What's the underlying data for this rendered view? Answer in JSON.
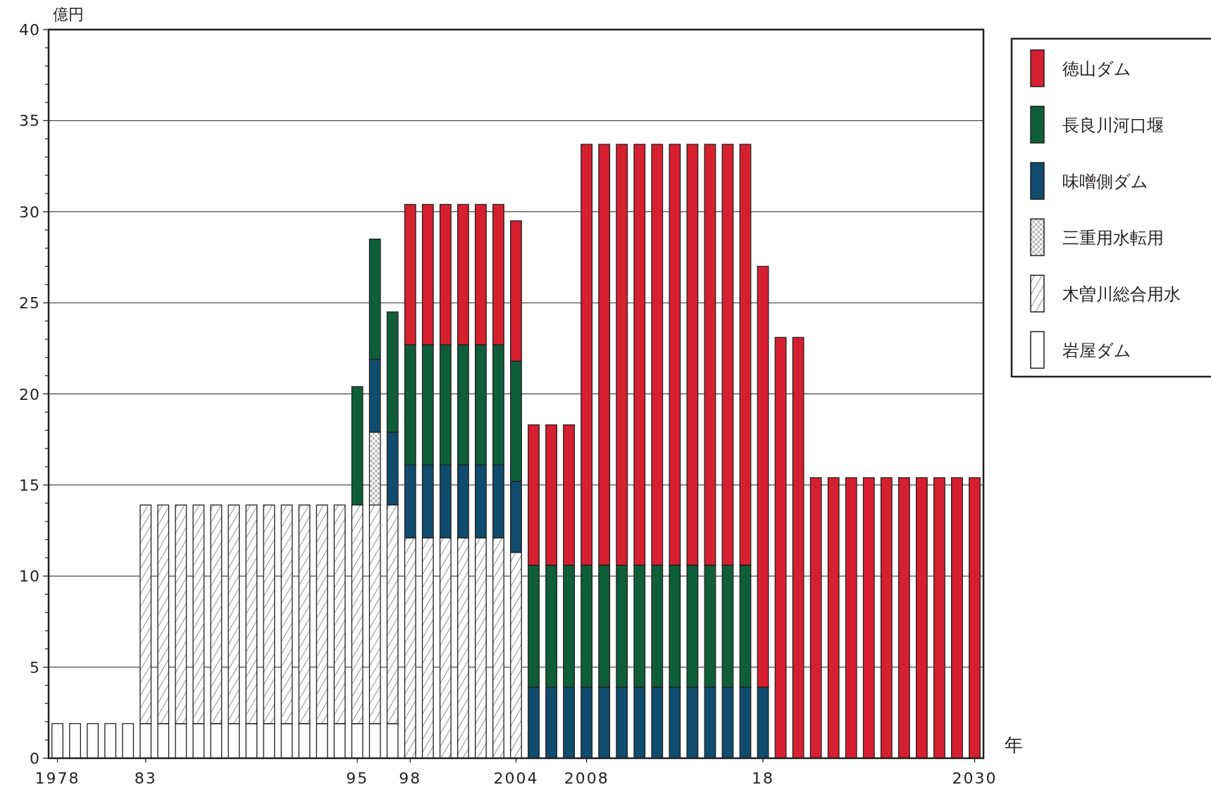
{
  "chart_data": {
    "type": "bar",
    "stacked": true,
    "ylabel": "億円",
    "xlabel": "年",
    "categories": [
      "1978",
      null,
      null,
      null,
      null,
      "83",
      null,
      null,
      null,
      null,
      null,
      null,
      null,
      null,
      null,
      null,
      null,
      "95",
      null,
      null,
      "98",
      null,
      null,
      null,
      null,
      null,
      "2004",
      null,
      null,
      null,
      "2008",
      null,
      null,
      null,
      null,
      null,
      null,
      null,
      null,
      null,
      "18",
      null,
      null,
      null,
      null,
      null,
      null,
      null,
      null,
      null,
      null,
      null,
      "2030"
    ],
    "ylim": [
      0,
      40
    ],
    "yticks": [
      0,
      {
        "value": 1,
        "label": null
      },
      {
        "value": 2,
        "label": null
      },
      {
        "value": 3,
        "label": null
      },
      {
        "value": 4,
        "label": null
      },
      5,
      {
        "value": 6,
        "label": null
      },
      {
        "value": 7,
        "label": null
      },
      {
        "value": 8,
        "label": null
      },
      {
        "value": 9,
        "label": null
      },
      10,
      {
        "value": 11,
        "label": null
      },
      {
        "value": 12,
        "label": null
      },
      {
        "value": 13,
        "label": null
      },
      {
        "value": 14,
        "label": null
      },
      15,
      {
        "value": 16,
        "label": null
      },
      {
        "value": 17,
        "label": null
      },
      {
        "value": 18,
        "label": null
      },
      {
        "value": 19,
        "label": null
      },
      20,
      {
        "value": 21,
        "label": null
      },
      {
        "value": 22,
        "label": null
      },
      {
        "value": 23,
        "label": null
      },
      {
        "value": 24,
        "label": null
      },
      25,
      {
        "value": 26,
        "label": null
      },
      {
        "value": 27,
        "label": null
      },
      {
        "value": 28,
        "label": null
      },
      {
        "value": 29,
        "label": null
      },
      30,
      {
        "value": 31,
        "label": null
      },
      {
        "value": 32,
        "label": null
      },
      {
        "value": 33,
        "label": null
      },
      {
        "value": 34,
        "label": null
      },
      35,
      {
        "value": 36,
        "label": null
      },
      {
        "value": 37,
        "label": null
      },
      {
        "value": 38,
        "label": null
      },
      {
        "value": 39,
        "label": null
      },
      40
    ],
    "grid": "y",
    "legend": "top right",
    "series": [
      {
        "name": "岩屋ダム",
        "color": "#ffffff",
        "values": [
          1.9,
          1.9,
          1.9,
          1.9,
          1.9,
          1.9,
          1.9,
          1.9,
          1.9,
          1.9,
          1.9,
          1.9,
          1.9,
          1.9,
          1.9,
          1.9,
          1.9,
          1.9,
          1.9,
          1.9,
          null,
          null,
          null,
          null,
          null,
          null,
          null,
          null,
          null,
          null,
          null,
          null,
          null,
          null,
          null,
          null,
          null,
          null,
          null,
          null,
          null,
          null,
          null,
          null,
          null,
          null,
          null,
          null,
          null,
          null,
          null,
          null,
          null
        ]
      },
      {
        "name": "木曽川総合用水",
        "color": "#231f20",
        "values": [
          null,
          null,
          null,
          null,
          null,
          12.0,
          12.0,
          12.0,
          12.0,
          12.0,
          12.0,
          12.0,
          12.0,
          12.0,
          12.0,
          12.0,
          12.0,
          12.0,
          12.0,
          12.0,
          12.1,
          12.1,
          12.1,
          12.1,
          12.1,
          12.1,
          11.3,
          null,
          null,
          null,
          null,
          null,
          null,
          null,
          null,
          null,
          null,
          null,
          null,
          null,
          null,
          null,
          null,
          null,
          null,
          null,
          null,
          null,
          null,
          null,
          null,
          null,
          null
        ]
      },
      {
        "name": "三重用水転用",
        "color": "#231f20",
        "values": [
          null,
          null,
          null,
          null,
          null,
          null,
          null,
          null,
          null,
          null,
          null,
          null,
          null,
          null,
          null,
          null,
          null,
          null,
          4.0,
          null,
          null,
          null,
          null,
          null,
          null,
          null,
          null,
          null,
          null,
          null,
          null,
          null,
          null,
          null,
          null,
          null,
          null,
          null,
          null,
          null,
          null,
          null,
          null,
          null,
          null,
          null,
          null,
          null,
          null,
          null,
          null,
          null,
          null
        ]
      },
      {
        "name": "味噌側ダム",
        "color": "#0f4c6e",
        "values": [
          null,
          null,
          null,
          null,
          null,
          null,
          null,
          null,
          null,
          null,
          null,
          null,
          null,
          null,
          null,
          null,
          null,
          null,
          4.0,
          4.0,
          4.0,
          4.0,
          4.0,
          4.0,
          4.0,
          4.0,
          3.9,
          3.9,
          3.9,
          3.9,
          3.9,
          3.9,
          3.9,
          3.9,
          3.9,
          3.9,
          3.9,
          3.9,
          3.9,
          3.9,
          3.9,
          null,
          null,
          null,
          null,
          null,
          null,
          null,
          null,
          null,
          null,
          null,
          null
        ]
      },
      {
        "name": "長良川河口堰",
        "color": "#0f5e3a",
        "values": [
          null,
          null,
          null,
          null,
          null,
          null,
          null,
          null,
          null,
          null,
          null,
          null,
          null,
          null,
          null,
          null,
          null,
          6.5,
          6.6,
          6.6,
          6.6,
          6.6,
          6.6,
          6.6,
          6.6,
          6.6,
          6.6,
          6.7,
          6.7,
          6.7,
          6.7,
          6.7,
          6.7,
          6.7,
          6.7,
          6.7,
          6.7,
          6.7,
          6.7,
          6.7,
          null,
          null,
          null,
          null,
          null,
          null,
          null,
          null,
          null,
          null,
          null,
          null,
          null
        ]
      },
      {
        "name": "徳山ダム",
        "color": "#d7202f",
        "values": [
          null,
          null,
          null,
          null,
          null,
          null,
          null,
          null,
          null,
          null,
          null,
          null,
          null,
          null,
          null,
          null,
          null,
          null,
          null,
          null,
          7.7,
          7.7,
          7.7,
          7.7,
          7.7,
          7.7,
          7.7,
          7.7,
          7.7,
          7.7,
          23.1,
          23.1,
          23.1,
          23.1,
          23.1,
          23.1,
          23.1,
          23.1,
          23.1,
          23.1,
          23.1,
          23.1,
          23.1,
          15.4,
          15.4,
          15.4,
          15.4,
          15.4,
          15.4,
          15.4,
          15.4,
          15.4,
          15.4
        ]
      }
    ]
  }
}
